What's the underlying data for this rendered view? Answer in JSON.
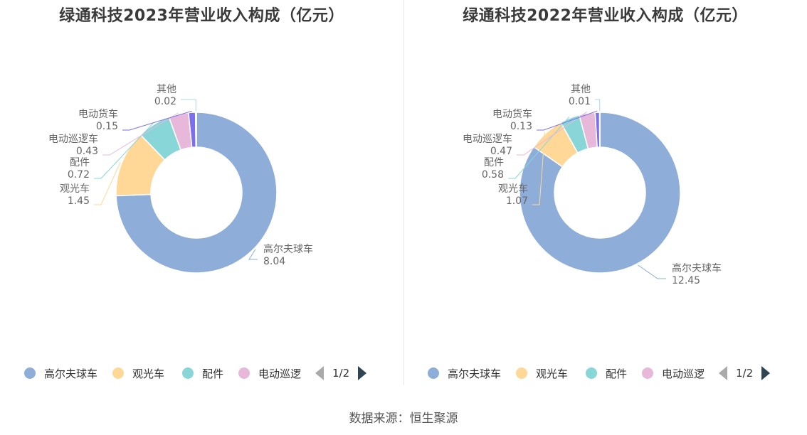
{
  "colors": {
    "高尔夫球车": "#8eadd9",
    "观光车": "#ffd898",
    "配件": "#88d6d8",
    "电动巡逻车": "#e7b8da",
    "电动货车": "#7b6ff0",
    "其他": "#aed6ef"
  },
  "source": "数据来源：恒生聚源",
  "chart_data": [
    {
      "type": "pie",
      "title": "绿通科技2023年营业收入构成（亿元）",
      "categories": [
        "高尔夫球车",
        "观光车",
        "配件",
        "电动巡逻车",
        "电动货车",
        "其他"
      ],
      "values": [
        8.04,
        1.45,
        0.72,
        0.43,
        0.15,
        0.02
      ],
      "value_labels": [
        "8.04",
        "1.45",
        "0.72",
        "0.43",
        "0.15",
        "0.02"
      ],
      "legend": {
        "position": "bottom",
        "items": [
          "高尔夫球车",
          "观光车",
          "配件",
          "电动巡逻"
        ],
        "page": "1/2"
      }
    },
    {
      "type": "pie",
      "title": "绿通科技2022年营业收入构成（亿元）",
      "categories": [
        "高尔夫球车",
        "观光车",
        "配件",
        "电动巡逻车",
        "电动货车",
        "其他"
      ],
      "values": [
        12.45,
        1.07,
        0.58,
        0.47,
        0.13,
        0.01
      ],
      "value_labels": [
        "12.45",
        "1.07",
        "0.58",
        "0.47",
        "0.13",
        "0.01"
      ],
      "legend": {
        "position": "bottom",
        "items": [
          "高尔夫球车",
          "观光车",
          "配件",
          "电动巡逻"
        ],
        "page": "1/2"
      }
    }
  ]
}
